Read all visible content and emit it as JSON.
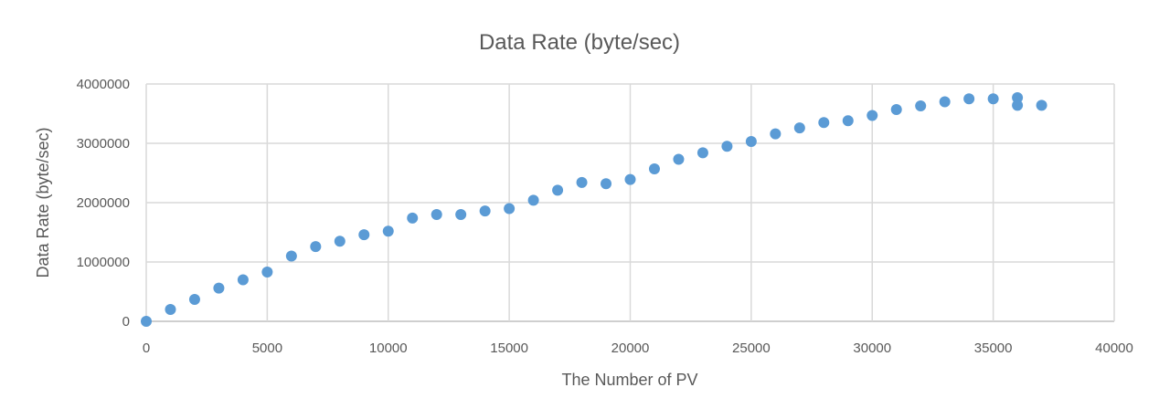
{
  "chart_data": {
    "type": "scatter",
    "title": "Data Rate (byte/sec)",
    "xlabel": "The Number of PV",
    "ylabel": "Data Rate (byte/sec)",
    "xlim": [
      0,
      40000
    ],
    "ylim": [
      0,
      4000000
    ],
    "x_ticks": [
      0,
      5000,
      10000,
      15000,
      20000,
      25000,
      30000,
      35000,
      40000
    ],
    "x_tick_labels": [
      "0",
      "5000",
      "10000",
      "15000",
      "20000",
      "25000",
      "30000",
      "35000",
      "40000"
    ],
    "y_ticks": [
      0,
      1000000,
      2000000,
      3000000,
      4000000
    ],
    "y_tick_labels": [
      "0",
      "1000000",
      "2000000",
      "3000000",
      "4000000"
    ],
    "grid": true,
    "color": "#5b9bd5",
    "series": [
      {
        "points": [
          [
            0,
            0
          ],
          [
            1000,
            200000
          ],
          [
            2000,
            370000
          ],
          [
            3000,
            560000
          ],
          [
            4000,
            700000
          ],
          [
            5000,
            830000
          ],
          [
            6000,
            1100000
          ],
          [
            7000,
            1260000
          ],
          [
            8000,
            1350000
          ],
          [
            9000,
            1460000
          ],
          [
            10000,
            1520000
          ],
          [
            11000,
            1740000
          ],
          [
            12000,
            1800000
          ],
          [
            13000,
            1800000
          ],
          [
            14000,
            1860000
          ],
          [
            15000,
            1900000
          ],
          [
            16000,
            2040000
          ],
          [
            17000,
            2210000
          ],
          [
            18000,
            2340000
          ],
          [
            19000,
            2320000
          ],
          [
            20000,
            2390000
          ],
          [
            21000,
            2570000
          ],
          [
            22000,
            2730000
          ],
          [
            23000,
            2840000
          ],
          [
            24000,
            2950000
          ],
          [
            25000,
            3030000
          ],
          [
            26000,
            3160000
          ],
          [
            27000,
            3260000
          ],
          [
            28000,
            3350000
          ],
          [
            29000,
            3380000
          ],
          [
            30000,
            3470000
          ],
          [
            31000,
            3570000
          ],
          [
            32000,
            3630000
          ],
          [
            33000,
            3700000
          ],
          [
            34000,
            3750000
          ],
          [
            35000,
            3750000
          ],
          [
            36000,
            3770000
          ],
          [
            36000,
            3640000
          ],
          [
            37000,
            3640000
          ]
        ]
      }
    ]
  }
}
